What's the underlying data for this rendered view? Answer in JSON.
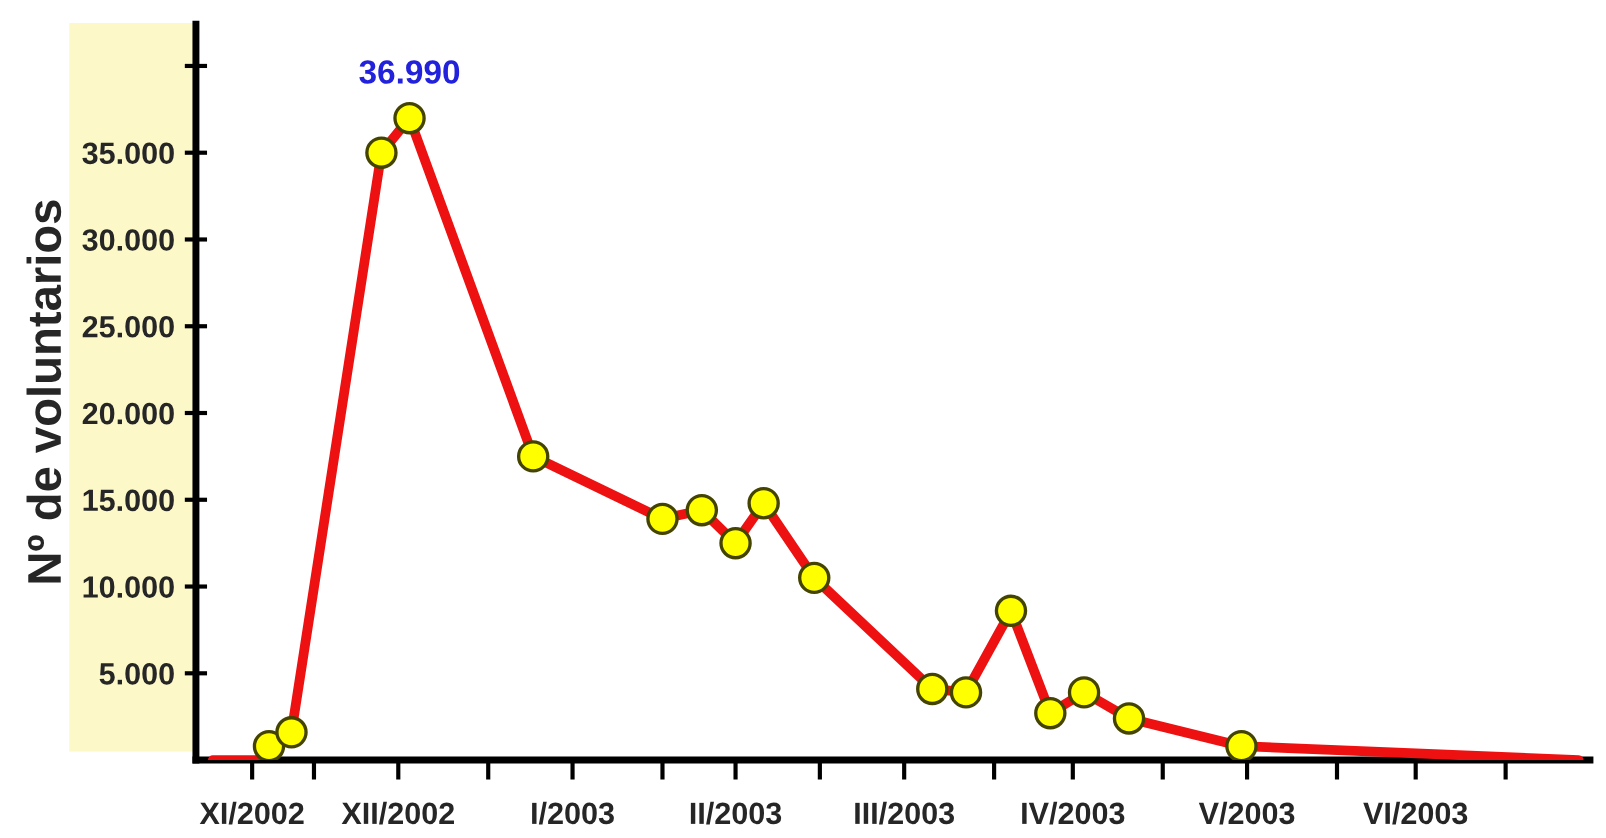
{
  "chart_data": {
    "type": "line",
    "ylabel": "Nº de voluntarios",
    "xlim": [
      "2002-11-10",
      "2003-07-16"
    ],
    "ylim": [
      0,
      42400
    ],
    "xticks": [
      {
        "value": "2002-12-01",
        "label": null
      },
      {
        "value": "2003-01-01",
        "label": null
      },
      {
        "value": "2003-02-01",
        "label": null
      },
      {
        "value": "2003-03-01",
        "label": null
      },
      {
        "value": "2003-04-01",
        "label": null
      },
      {
        "value": "2003-05-01",
        "label": null
      },
      {
        "value": "2003-06-01",
        "label": null
      },
      {
        "value": "2003-07-01",
        "label": null
      },
      {
        "value": "2002-11-20",
        "label": "XI/2002"
      },
      {
        "value": "2002-12-16",
        "label": "XII/2002"
      },
      {
        "value": "2003-01-16",
        "label": "I/2003"
      },
      {
        "value": "2003-02-14",
        "label": "II/2003"
      },
      {
        "value": "2003-03-16",
        "label": "III/2003"
      },
      {
        "value": "2003-04-15",
        "label": "IV/2003"
      },
      {
        "value": "2003-05-16",
        "label": "V/2003"
      },
      {
        "value": "2003-06-15",
        "label": "VI/2003"
      }
    ],
    "yticks": [
      {
        "value": 5000,
        "label": "5.000"
      },
      {
        "value": 10000,
        "label": "10.000"
      },
      {
        "value": 15000,
        "label": "15.000"
      },
      {
        "value": 20000,
        "label": "20.000"
      },
      {
        "value": 25000,
        "label": "25.000"
      },
      {
        "value": 30000,
        "label": "30.000"
      },
      {
        "value": 35000,
        "label": "35.000"
      },
      {
        "value": 40000,
        "label": null
      }
    ],
    "grid": false,
    "legend": false,
    "series": [
      {
        "color": "#ee1111",
        "marker": "none",
        "x": [
          "2002-11-13",
          "2002-11-21",
          "2002-11-23",
          "2002-11-27",
          "2002-12-13",
          "2002-12-18",
          "2003-01-09",
          "2003-02-01",
          "2003-02-08",
          "2003-02-14",
          "2003-02-19",
          "2003-02-28",
          "2003-03-21",
          "2003-03-27",
          "2003-04-04",
          "2003-04-11",
          "2003-04-17",
          "2003-04-25",
          "2003-05-15",
          "2003-07-14"
        ],
        "values": [
          0,
          0,
          800,
          1600,
          35000,
          36990,
          17500,
          13900,
          14400,
          12500,
          14800,
          10500,
          4100,
          3900,
          8600,
          2700,
          3900,
          2400,
          800,
          0
        ]
      },
      {
        "type": "scatter",
        "color": "#ffff00",
        "marker": "circle",
        "x": [
          "2002-11-23",
          "2002-11-27",
          "2002-12-13",
          "2002-12-18",
          "2003-01-09",
          "2003-02-01",
          "2003-02-08",
          "2003-02-14",
          "2003-02-19",
          "2003-02-28",
          "2003-03-21",
          "2003-03-27",
          "2003-04-04",
          "2003-04-11",
          "2003-04-17",
          "2003-04-25",
          "2003-05-15"
        ],
        "values": [
          800,
          1600,
          35000,
          36990,
          17500,
          13900,
          14400,
          12500,
          14800,
          10500,
          4100,
          3900,
          8600,
          2700,
          3900,
          2400,
          800
        ]
      }
    ],
    "annotations": [
      {
        "text": "36.990",
        "x": "2002-12-18",
        "y": 36990
      }
    ]
  }
}
